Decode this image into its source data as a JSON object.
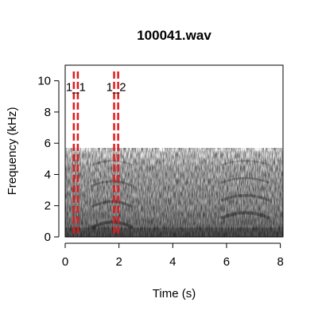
{
  "chart_data": {
    "type": "heatmap",
    "title": "100041.wav",
    "xlabel": "Time (s)",
    "ylabel": "Frequency (kHz)",
    "xlim": [
      0,
      8.1
    ],
    "ylim": [
      0,
      11
    ],
    "x_ticks": [
      0,
      2,
      4,
      6,
      8
    ],
    "y_ticks": [
      0,
      2,
      4,
      6,
      8,
      10
    ],
    "grid": false,
    "legend": "none",
    "colormap": [
      "#ffffff",
      "#000000"
    ],
    "marker_color": "#e31a1c",
    "markers": [
      {
        "label": "1_1",
        "x": [
          0.32,
          0.47
        ]
      },
      {
        "label": "1_2",
        "x": [
          1.82,
          1.97
        ]
      }
    ],
    "signal_band_khz": [
      0,
      5.5
    ],
    "calls": [
      {
        "t_start": 1.0,
        "t_end": 2.5,
        "f_low": 0.8,
        "f_high": 4.8
      },
      {
        "t_start": 5.8,
        "t_end": 7.6,
        "f_low": 1.4,
        "f_high": 4.8
      }
    ]
  }
}
